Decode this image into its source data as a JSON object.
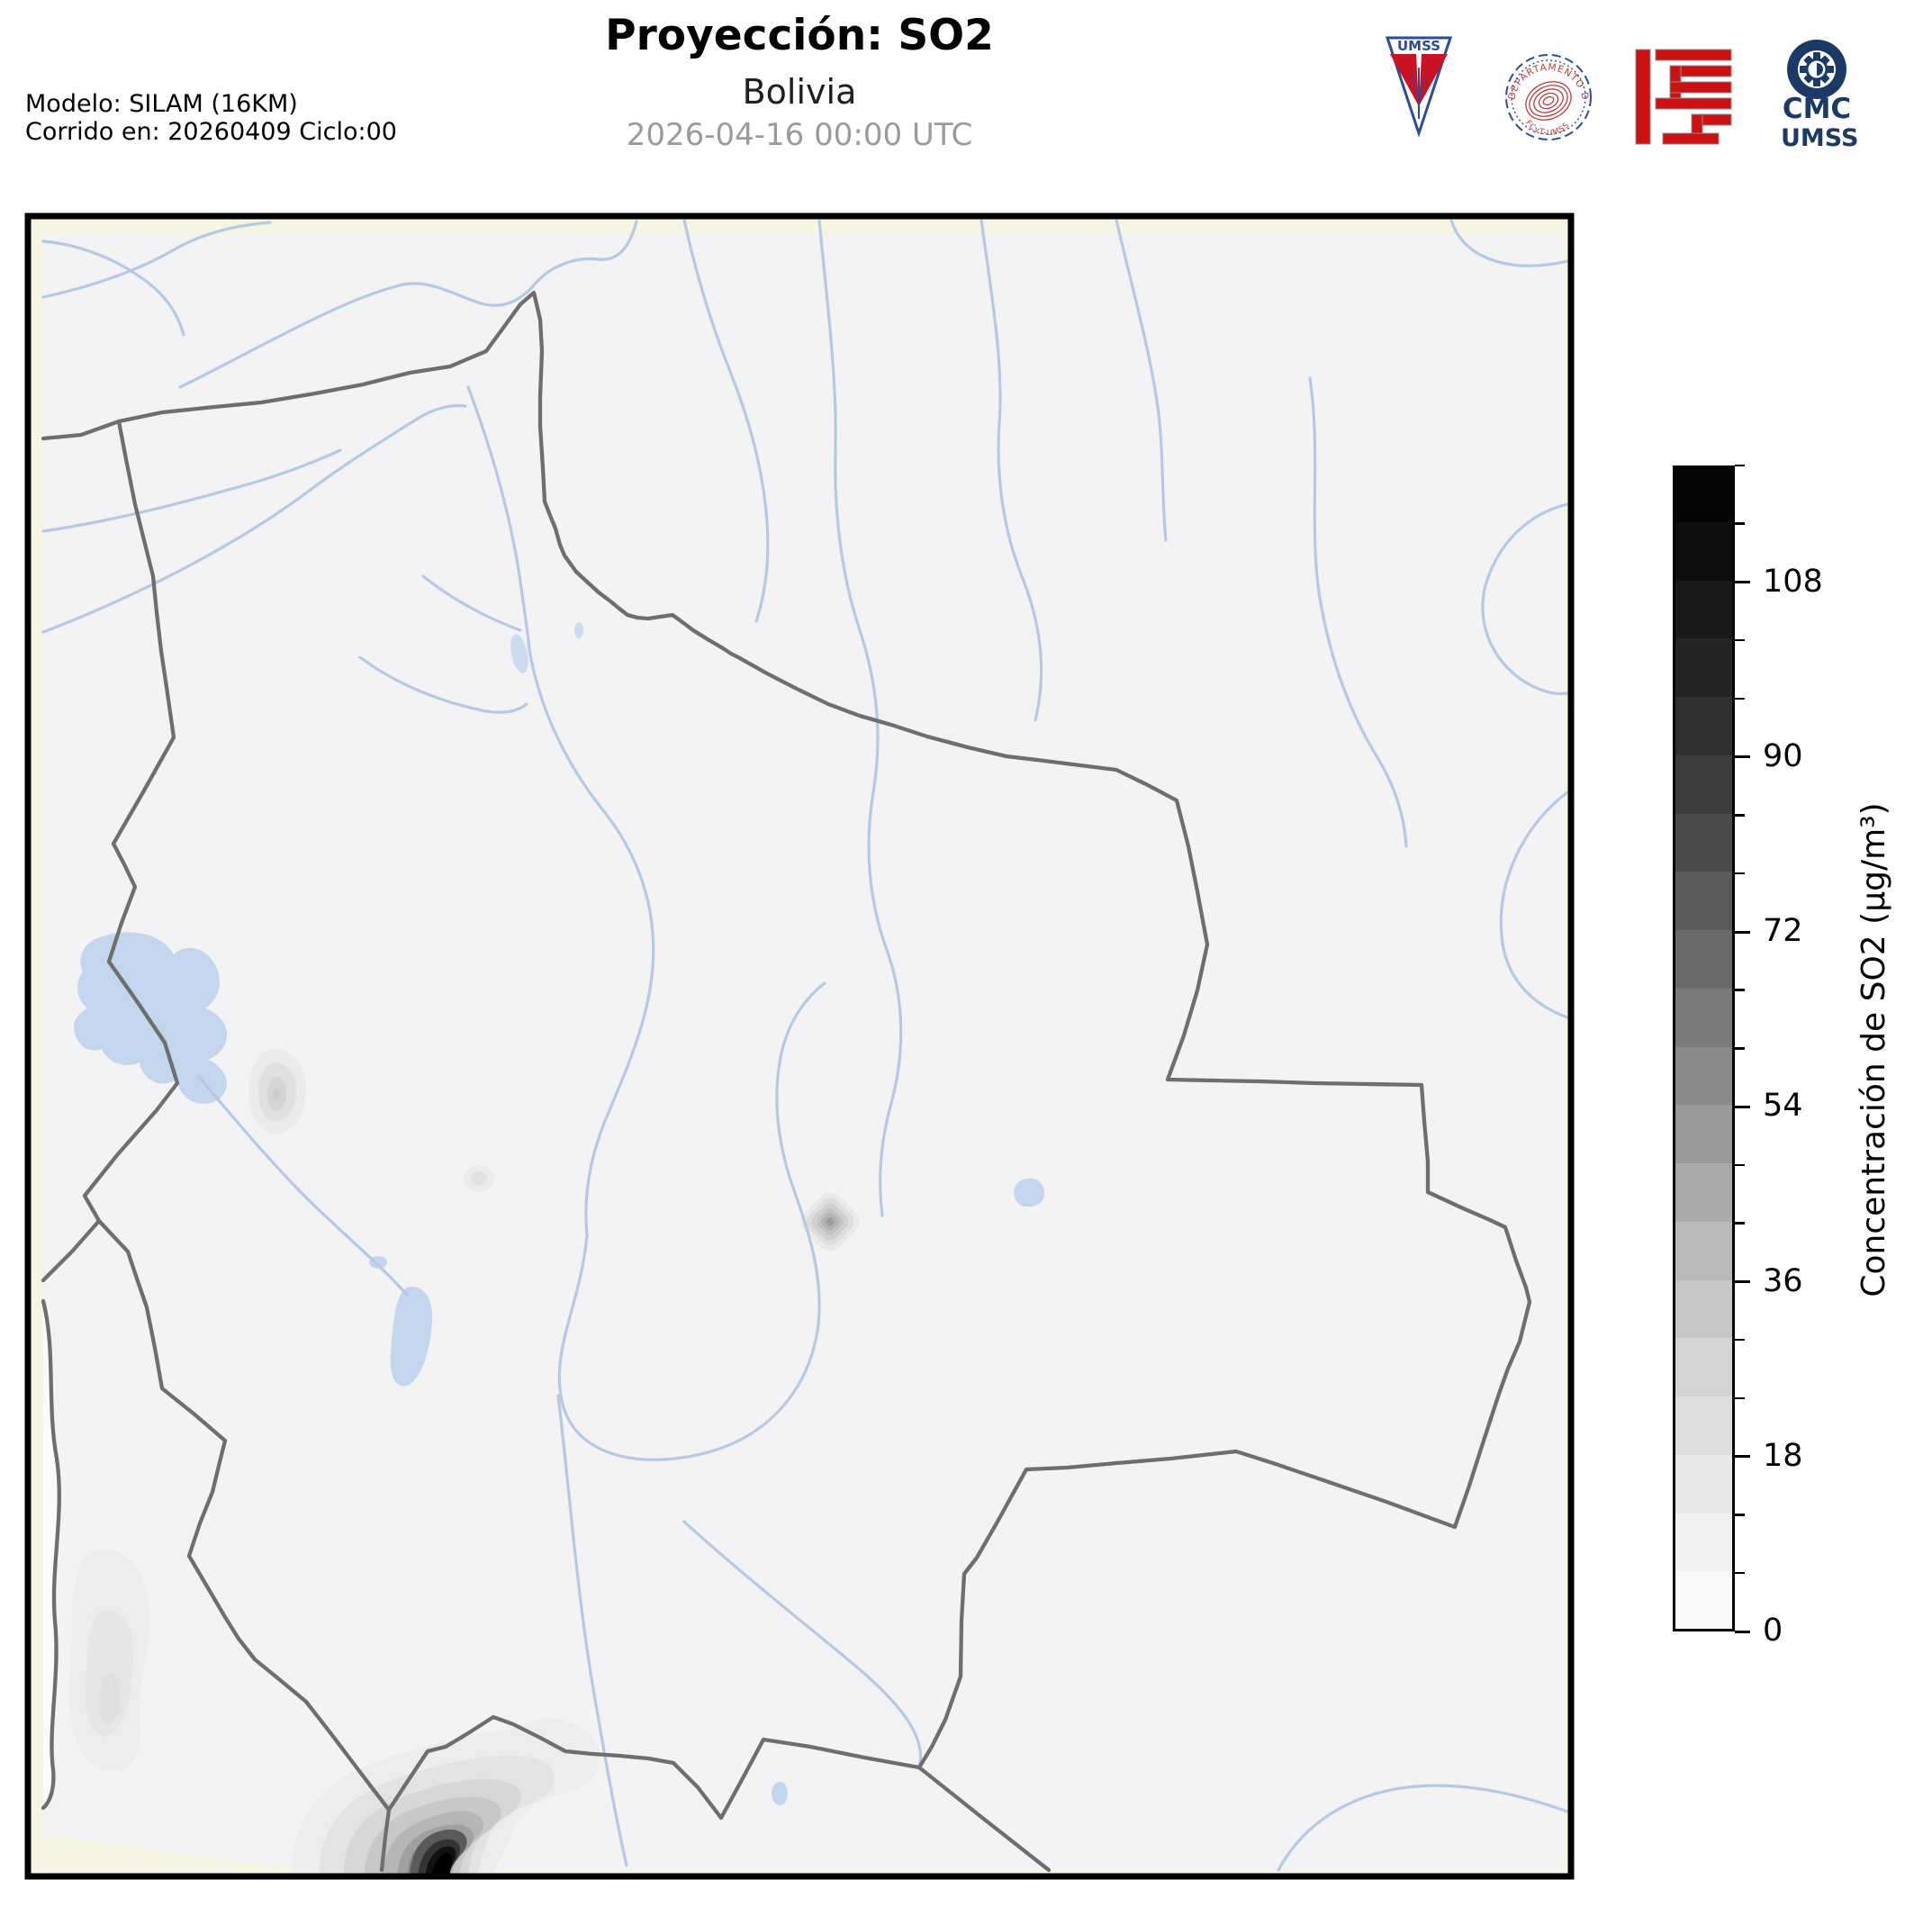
{
  "header": {
    "title": "Proyección: SO2",
    "subtitle": "Bolivia",
    "datetime": "2026-04-16 00:00 UTC",
    "model_line1": "Modelo: SILAM (16KM)",
    "model_line2": "Corrido en: 20260409 Ciclo:00"
  },
  "logos": {
    "pennant_text": "UMSS",
    "seal_top_text": "DEPARTAMENTO DE FÍSICA",
    "seal_bottom_text": "FCyT-UMSS",
    "cmc_line1": "CMC",
    "cmc_line2": "UMSS"
  },
  "colorbar": {
    "label": "Concentración de SO2 (µg/m³)",
    "vmin": 0,
    "vmax": 120,
    "major_ticks": [
      0,
      18,
      36,
      54,
      72,
      90,
      108
    ],
    "minor_step": 6,
    "segment_colors": [
      "#f9f9f9",
      "#f1f1f2",
      "#e8e8e9",
      "#dedede",
      "#d3d3d4",
      "#c7c7c8",
      "#b9b9ba",
      "#aaaaab",
      "#9a9a9b",
      "#8a8a8b",
      "#7a7a7b",
      "#6a6a6b",
      "#5a5a5b",
      "#4b4b4c",
      "#3d3d3e",
      "#303031",
      "#242425",
      "#19191a",
      "#0e0e0f",
      "#050506"
    ]
  },
  "map": {
    "region": "Bolivia",
    "colors": {
      "frame": "#000000",
      "axes_background": "#f6f5e4",
      "land_fill": "#f3f3f5",
      "ocean_fill": "#fbfbfc",
      "river": "#b5c9e6",
      "lake": "#c3d6ee",
      "border": "#6e6e6e",
      "plume_max": "#000000"
    }
  },
  "chart_data": {
    "type": "heatmap",
    "title": "Proyección: SO2 — Bolivia",
    "colorbar_label": "Concentración de SO2 (µg/m³)",
    "scale_range": [
      0,
      120
    ],
    "scale_ticks": [
      0,
      18,
      36,
      54,
      72,
      90,
      108
    ],
    "hotspots": [
      {
        "name": "pluma-principal-suroeste",
        "approx_peak": "≈120 (negro, máximo de escala)"
      },
      {
        "name": "mancha-centro",
        "approx_peak": "≈36"
      },
      {
        "name": "mancha-altiplano",
        "approx_peak": "≈18"
      },
      {
        "name": "mancha-menor-centro",
        "approx_peak": "≈12"
      },
      {
        "name": "parche-chile-suroeste",
        "approx_peak": "≈12"
      }
    ]
  }
}
